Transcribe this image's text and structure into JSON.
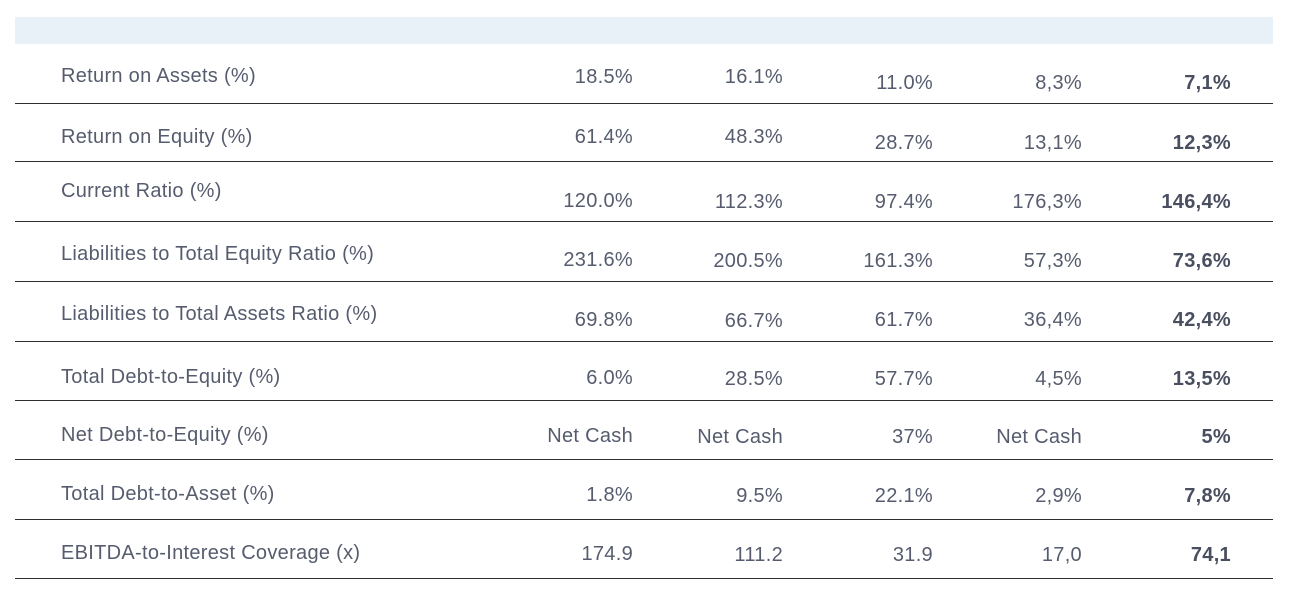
{
  "rows": [
    {
      "label": "Return on Assets (%)",
      "values": [
        "18.5%",
        "16.1%",
        "11.0%",
        "8,3%",
        "7,1%"
      ]
    },
    {
      "label": "Return on Equity (%)",
      "values": [
        "61.4%",
        "48.3%",
        "28.7%",
        "13,1%",
        "12,3%"
      ]
    },
    {
      "label": "Current Ratio (%)",
      "values": [
        "120.0%",
        "112.3%",
        "97.4%",
        "176,3%",
        "146,4%"
      ]
    },
    {
      "label": "Liabilities to Total Equity Ratio (%)",
      "values": [
        "231.6%",
        "200.5%",
        "161.3%",
        "57,3%",
        "73,6%"
      ]
    },
    {
      "label": "Liabilities to Total Assets Ratio (%)",
      "values": [
        "69.8%",
        "66.7%",
        "61.7%",
        "36,4%",
        "42,4%"
      ]
    },
    {
      "label": "Total Debt-to-Equity (%)",
      "values": [
        "6.0%",
        "28.5%",
        "57.7%",
        "4,5%",
        "13,5%"
      ]
    },
    {
      "label": "Net Debt-to-Equity (%)",
      "values": [
        "Net Cash",
        "Net Cash",
        "37%",
        "Net Cash",
        "5%"
      ]
    },
    {
      "label": "Total Debt-to-Asset (%)",
      "values": [
        "1.8%",
        "9.5%",
        "22.1%",
        "2,9%",
        "7,8%"
      ]
    },
    {
      "label": "EBITDA-to-Interest Coverage (x)",
      "values": [
        "174.9",
        "111.2",
        "31.9",
        "17,0",
        "74,1"
      ]
    }
  ]
}
